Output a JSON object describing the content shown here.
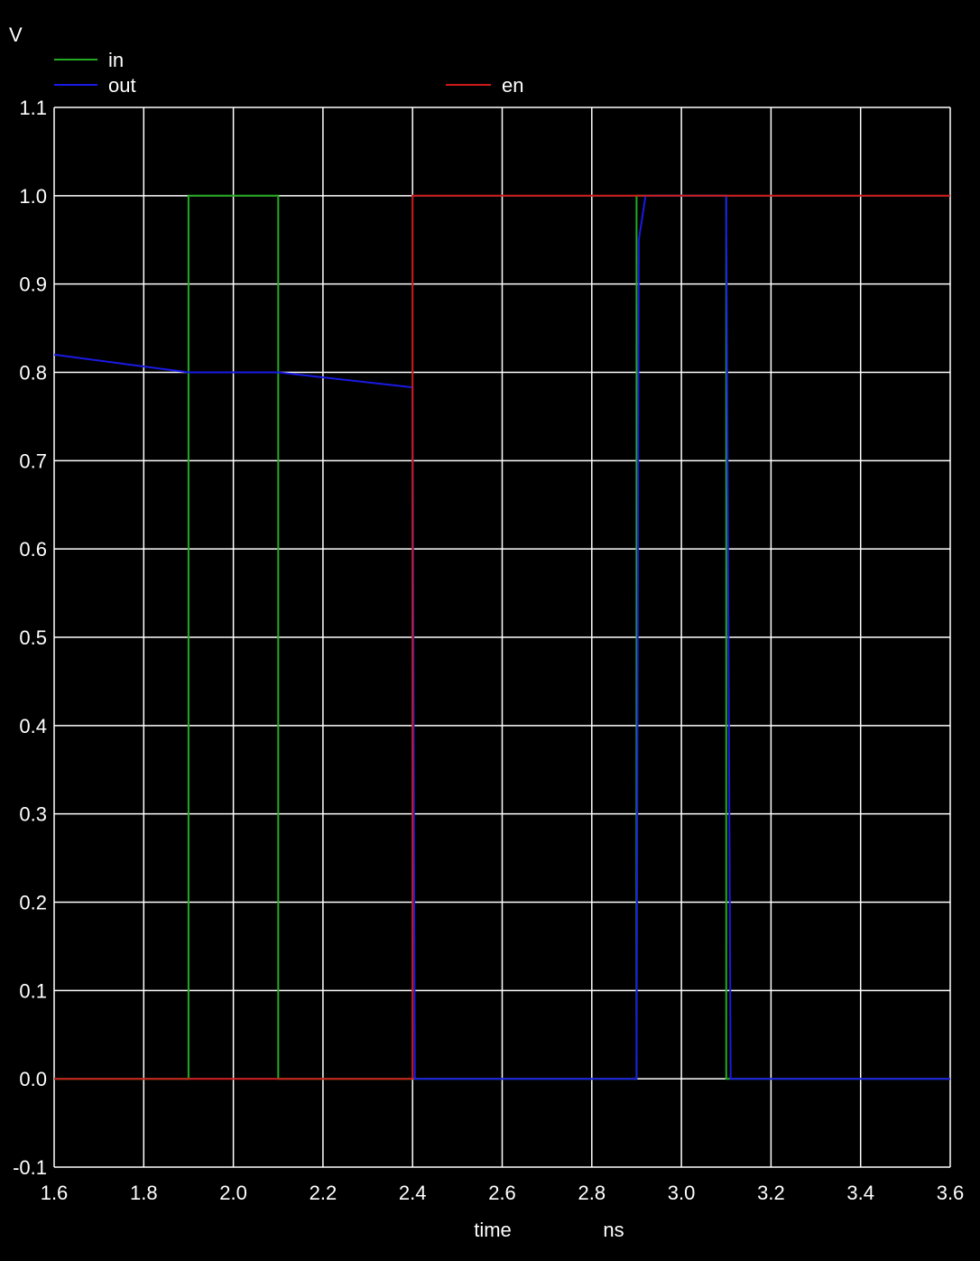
{
  "chart_data": {
    "type": "line",
    "ylabel": "V",
    "xlabel": "time",
    "xunit": "ns",
    "xlim": [
      1.6,
      3.6
    ],
    "ylim": [
      -0.1,
      1.1
    ],
    "x_ticks": [
      "1.6",
      "1.8",
      "2.0",
      "2.2",
      "2.4",
      "2.6",
      "2.8",
      "3.0",
      "3.2",
      "3.4",
      "3.6"
    ],
    "y_ticks": [
      "1.1",
      "1.0",
      "0.9",
      "0.8",
      "0.7",
      "0.6",
      "0.5",
      "0.4",
      "0.3",
      "0.2",
      "0.1",
      "0.0",
      "-0.1"
    ],
    "grid": true,
    "legend_placement": "top",
    "series": [
      {
        "name": "in",
        "color": "#22aa22",
        "x": [
          1.6,
          1.9,
          1.9,
          2.1,
          2.1,
          2.9,
          2.9,
          3.1,
          3.1,
          3.6
        ],
        "y": [
          0.0,
          0.0,
          1.0,
          1.0,
          0.0,
          0.0,
          1.0,
          1.0,
          0.0,
          0.0
        ]
      },
      {
        "name": "out",
        "color": "#1a1ae6",
        "x": [
          1.6,
          1.9,
          2.1,
          2.4,
          2.405,
          2.9,
          2.905,
          2.92,
          3.1,
          3.11,
          3.6
        ],
        "y": [
          0.82,
          0.8,
          0.8,
          0.783,
          0.0,
          0.0,
          0.95,
          1.0,
          1.0,
          0.0,
          0.0
        ]
      },
      {
        "name": "en",
        "color": "#cc1a1a",
        "x": [
          1.6,
          2.4,
          2.4,
          3.6
        ],
        "y": [
          0.0,
          0.0,
          1.0,
          1.0
        ]
      }
    ]
  }
}
